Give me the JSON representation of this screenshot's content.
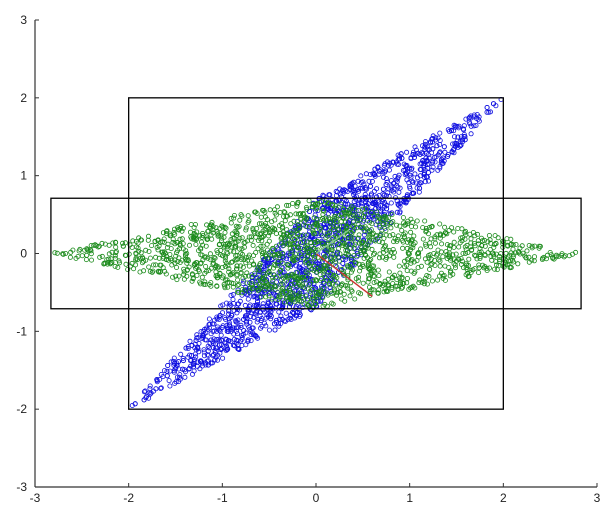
{
  "chart_data": {
    "type": "scatter",
    "title": "",
    "xlabel": "",
    "ylabel": "",
    "xlim": [
      -3,
      3
    ],
    "ylim": [
      -3,
      3
    ],
    "grid": false,
    "x_ticks": [
      "-3",
      "-2",
      "-1",
      "0",
      "1",
      "2",
      "3"
    ],
    "y_ticks": [
      "-3",
      "-2",
      "-1",
      "0",
      "1",
      "2",
      "3"
    ],
    "series": [
      {
        "color": "#1010e0",
        "marker": "circle-outline",
        "region_vertices": [
          [
            -2,
            -2
          ],
          [
            0,
            -0.7
          ],
          [
            2,
            2
          ],
          [
            0,
            0.7
          ]
        ]
      },
      {
        "color": "#1a8a1a",
        "marker": "circle-outline",
        "region_vertices": [
          [
            -2.83,
            0
          ],
          [
            0,
            -0.71
          ],
          [
            2.83,
            0
          ],
          [
            0,
            0.71
          ]
        ]
      }
    ],
    "bounding_boxes": [
      {
        "xmin": -2,
        "xmax": 2,
        "ymin": -2,
        "ymax": 2,
        "color": "#000000"
      },
      {
        "xmin": -2.83,
        "xmax": 2.83,
        "ymin": -0.71,
        "ymax": 0.71,
        "color": "#000000"
      }
    ],
    "segments": [
      {
        "x": [
          0,
          0.6
        ],
        "y": [
          0,
          -0.55
        ],
        "color": "#cc3333"
      },
      {
        "x": [
          0,
          0.35
        ],
        "y": [
          0,
          0.3
        ],
        "color": "#88cc88"
      }
    ]
  }
}
